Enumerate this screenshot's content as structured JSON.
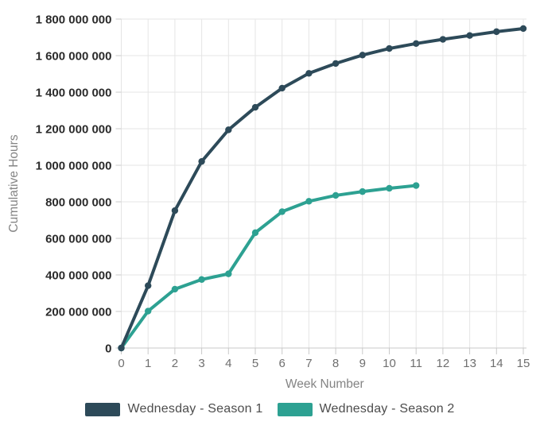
{
  "chart_data": {
    "type": "line",
    "xlabel": "Week Number",
    "ylabel": "Cumulative Hours",
    "xlim": [
      0,
      15
    ],
    "ylim": [
      0,
      1800000000
    ],
    "x_ticks": [
      0,
      1,
      2,
      3,
      4,
      5,
      6,
      7,
      8,
      9,
      10,
      11,
      12,
      13,
      14,
      15
    ],
    "y_ticks": [
      0,
      200000000,
      400000000,
      600000000,
      800000000,
      1000000000,
      1200000000,
      1400000000,
      1600000000,
      1800000000
    ],
    "grid": true,
    "legend_position": "bottom",
    "series": [
      {
        "name": "Wednesday - Season 1",
        "color": "#2d4a59",
        "x": [
          0,
          1,
          2,
          3,
          4,
          5,
          6,
          7,
          8,
          9,
          10,
          11,
          12,
          13,
          14,
          15
        ],
        "values": [
          0,
          341000000,
          752000000,
          1021000000,
          1194000000,
          1317000000,
          1422000000,
          1503000000,
          1557000000,
          1603000000,
          1639000000,
          1666000000,
          1689000000,
          1710000000,
          1731000000,
          1748000000
        ]
      },
      {
        "name": "Wednesday - Season 2",
        "color": "#2da192",
        "x": [
          0,
          1,
          2,
          3,
          4,
          5,
          6,
          7,
          8,
          9,
          10,
          11
        ],
        "values": [
          0,
          202000000,
          322000000,
          375000000,
          406000000,
          631000000,
          746000000,
          803000000,
          835000000,
          856000000,
          874000000,
          889000000
        ]
      }
    ]
  },
  "colors": {
    "grid_line": "#e5e5e5",
    "axis_line": "#c9c9c9",
    "x_tick_label": "#6f6f6f",
    "y_tick_label": "#2b2b2b",
    "axis_title": "#848484",
    "legend_text": "#4d4d4d"
  }
}
